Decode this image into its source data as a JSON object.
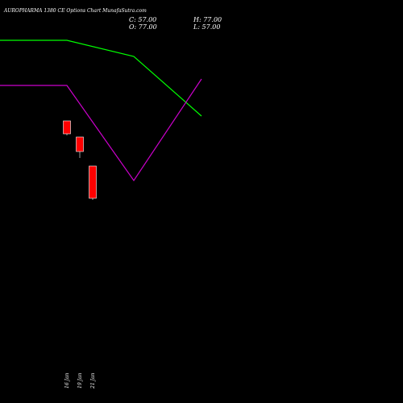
{
  "header": {
    "title": "AUROPHARMA 1380  CE Options  Chart MunafaSutra.com",
    "close_label": "C: 57.00",
    "high_label": "H: 77.00",
    "open_label": "O: 77.00",
    "low_label": "L: 57.00"
  },
  "colors": {
    "background": "#000000",
    "text": "#ffffff",
    "up_line": "#00ff00",
    "down_line": "#cc00cc",
    "candle": "#ff0000"
  },
  "chart_data": {
    "type": "candlestick",
    "title": "AUROPHARMA 1380  CE Options  Chart MunafaSutra.com",
    "x": [
      "16 Jan",
      "19 Jan",
      "21 Jan"
    ],
    "candles": [
      {
        "date": "16 Jan",
        "open": 105,
        "high": 105,
        "low": 97,
        "close": 97
      },
      {
        "date": "19 Jan",
        "open": 95,
        "high": 95,
        "low": 83,
        "close": 86
      },
      {
        "date": "21 Jan",
        "open": 77,
        "high": 77,
        "low": 57,
        "close": 57
      }
    ],
    "lines": [
      {
        "color": "#00ff00",
        "values": [
          155,
          155,
          145,
          108
        ],
        "x_index": [
          0,
          1,
          2,
          3
        ]
      },
      {
        "color": "#cc00cc",
        "values": [
          127,
          127,
          68,
          131
        ],
        "x_index": [
          0,
          1,
          2,
          3
        ]
      }
    ],
    "ylim": [
      0,
      170
    ],
    "grid": false,
    "legend": "none"
  }
}
